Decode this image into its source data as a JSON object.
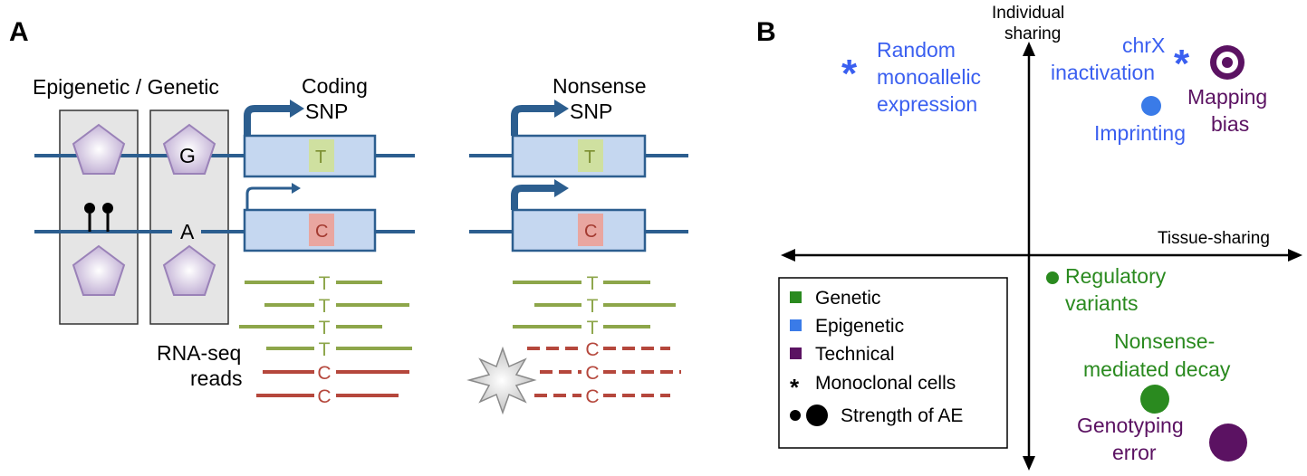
{
  "panel_a": {
    "label": "A",
    "epigenetic_genetic": "Epigenetic / Genetic",
    "allele_g": "G",
    "allele_a": "A",
    "coding_title": "Coding",
    "coding_snp": "SNP",
    "nonsense_title": "Nonsense",
    "nonsense_snp": "SNP",
    "snp_t": "T",
    "snp_c": "C",
    "rnaseq_line1": "RNA-seq",
    "rnaseq_line2": "reads",
    "coding_reads": [
      "T",
      "T",
      "T",
      "T",
      "C",
      "C"
    ],
    "nonsense_reads": [
      "T",
      "T",
      "T",
      "C",
      "C",
      "C"
    ]
  },
  "panel_b": {
    "label": "B",
    "y_axis_line1": "Individual",
    "y_axis_line2": "sharing",
    "x_axis": "Tissue-sharing",
    "items": {
      "random_mono": [
        "Random",
        "monoallelic",
        "expression"
      ],
      "chrx": [
        "chrX",
        "inactivation"
      ],
      "imprinting": "Imprinting",
      "mapping_bias": [
        "Mapping",
        "bias"
      ],
      "regulatory": [
        "Regulatory",
        "variants"
      ],
      "nmd": [
        "Nonsense-",
        "mediated decay"
      ],
      "genotyping": [
        "Genotyping",
        "error"
      ]
    },
    "legend": {
      "genetic": "Genetic",
      "epigenetic": "Epigenetic",
      "technical": "Technical",
      "monoclonal": "Monoclonal cells",
      "strength": "Strength of AE"
    },
    "colors": {
      "genetic": "#2a8a1f",
      "epigenetic": "#3a5ff0",
      "technical": "#5b1262",
      "gene_line": "#2c5e8f",
      "read_green": "#8da64a",
      "read_red": "#b5473c"
    }
  }
}
